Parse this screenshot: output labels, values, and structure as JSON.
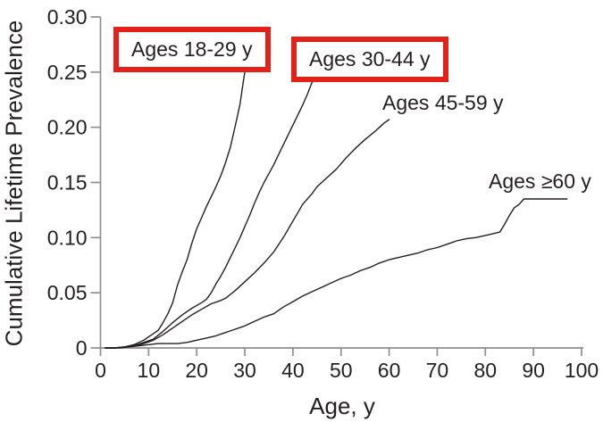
{
  "chart_data": {
    "type": "line",
    "title": "",
    "xlabel": "Age, y",
    "ylabel": "Cumulative Lifetime Prevalence",
    "xlim": [
      0,
      100
    ],
    "ylim": [
      0,
      0.3
    ],
    "x_ticks": [
      0,
      10,
      20,
      30,
      40,
      50,
      60,
      70,
      80,
      90,
      100
    ],
    "y_ticks": [
      0,
      0.05,
      0.1,
      0.15,
      0.2,
      0.25,
      0.3
    ],
    "grid": false,
    "legend_position": "inline-annotations",
    "line_color": "#231f20",
    "axis_color": "#8f8f8f",
    "highlight_box_color": "#e32119",
    "series": [
      {
        "name": "Ages 18-29 y",
        "boxed": true,
        "points": [
          [
            1,
            0
          ],
          [
            3,
            0
          ],
          [
            5,
            0.001
          ],
          [
            7,
            0.003
          ],
          [
            9,
            0.007
          ],
          [
            10,
            0.01
          ],
          [
            11,
            0.013
          ],
          [
            12,
            0.016
          ],
          [
            13,
            0.023
          ],
          [
            14,
            0.031
          ],
          [
            15,
            0.041
          ],
          [
            16,
            0.057
          ],
          [
            17,
            0.069
          ],
          [
            18,
            0.08
          ],
          [
            19,
            0.095
          ],
          [
            20,
            0.108
          ],
          [
            21,
            0.118
          ],
          [
            22,
            0.128
          ],
          [
            23,
            0.137
          ],
          [
            24,
            0.146
          ],
          [
            25,
            0.156
          ],
          [
            26,
            0.168
          ],
          [
            27,
            0.182
          ],
          [
            28,
            0.201
          ],
          [
            29,
            0.221
          ],
          [
            29.5,
            0.236
          ],
          [
            30,
            0.25
          ]
        ]
      },
      {
        "name": "Ages 30-44 y",
        "boxed": true,
        "points": [
          [
            1,
            0
          ],
          [
            3,
            0
          ],
          [
            5,
            0.001
          ],
          [
            7,
            0.002
          ],
          [
            9,
            0.005
          ],
          [
            11,
            0.008
          ],
          [
            13,
            0.015
          ],
          [
            15,
            0.023
          ],
          [
            17,
            0.03
          ],
          [
            19,
            0.036
          ],
          [
            21,
            0.041
          ],
          [
            22,
            0.044
          ],
          [
            23,
            0.05
          ],
          [
            24,
            0.058
          ],
          [
            25,
            0.065
          ],
          [
            26,
            0.073
          ],
          [
            27,
            0.082
          ],
          [
            28,
            0.091
          ],
          [
            29,
            0.1
          ],
          [
            30,
            0.11
          ],
          [
            31,
            0.12
          ],
          [
            32,
            0.131
          ],
          [
            33,
            0.141
          ],
          [
            34,
            0.15
          ],
          [
            35,
            0.158
          ],
          [
            36,
            0.166
          ],
          [
            37,
            0.175
          ],
          [
            38,
            0.184
          ],
          [
            39,
            0.193
          ],
          [
            40,
            0.202
          ],
          [
            41,
            0.211
          ],
          [
            42,
            0.22
          ],
          [
            43,
            0.23
          ],
          [
            44,
            0.241
          ]
        ]
      },
      {
        "name": "Ages 45-59 y",
        "boxed": false,
        "points": [
          [
            1,
            0
          ],
          [
            3,
            0
          ],
          [
            5,
            0.001
          ],
          [
            7,
            0.002
          ],
          [
            9,
            0.004
          ],
          [
            11,
            0.007
          ],
          [
            13,
            0.012
          ],
          [
            15,
            0.018
          ],
          [
            17,
            0.024
          ],
          [
            19,
            0.03
          ],
          [
            21,
            0.035
          ],
          [
            23,
            0.04
          ],
          [
            25,
            0.043
          ],
          [
            26,
            0.045
          ],
          [
            28,
            0.052
          ],
          [
            30,
            0.06
          ],
          [
            32,
            0.068
          ],
          [
            34,
            0.077
          ],
          [
            36,
            0.087
          ],
          [
            38,
            0.1
          ],
          [
            40,
            0.115
          ],
          [
            42,
            0.13
          ],
          [
            44,
            0.14
          ],
          [
            45,
            0.146
          ],
          [
            47,
            0.154
          ],
          [
            49,
            0.162
          ],
          [
            51,
            0.172
          ],
          [
            53,
            0.181
          ],
          [
            55,
            0.189
          ],
          [
            57,
            0.196
          ],
          [
            58,
            0.2
          ],
          [
            59,
            0.204
          ],
          [
            60,
            0.207
          ]
        ]
      },
      {
        "name": "Ages ≥60 y",
        "boxed": false,
        "points": [
          [
            1,
            0
          ],
          [
            4,
            0
          ],
          [
            6,
            0.001
          ],
          [
            8,
            0.002
          ],
          [
            10,
            0.003
          ],
          [
            12,
            0.004
          ],
          [
            14,
            0.004
          ],
          [
            16,
            0.004
          ],
          [
            18,
            0.005
          ],
          [
            20,
            0.007
          ],
          [
            22,
            0.009
          ],
          [
            24,
            0.011
          ],
          [
            26,
            0.014
          ],
          [
            28,
            0.017
          ],
          [
            30,
            0.02
          ],
          [
            32,
            0.024
          ],
          [
            34,
            0.028
          ],
          [
            36,
            0.031
          ],
          [
            38,
            0.037
          ],
          [
            40,
            0.042
          ],
          [
            42,
            0.047
          ],
          [
            44,
            0.051
          ],
          [
            46,
            0.055
          ],
          [
            48,
            0.059
          ],
          [
            50,
            0.063
          ],
          [
            52,
            0.066
          ],
          [
            54,
            0.07
          ],
          [
            56,
            0.073
          ],
          [
            58,
            0.077
          ],
          [
            60,
            0.08
          ],
          [
            62,
            0.082
          ],
          [
            64,
            0.084
          ],
          [
            66,
            0.086
          ],
          [
            68,
            0.089
          ],
          [
            70,
            0.091
          ],
          [
            72,
            0.094
          ],
          [
            74,
            0.097
          ],
          [
            76,
            0.099
          ],
          [
            78,
            0.1
          ],
          [
            80,
            0.102
          ],
          [
            82,
            0.104
          ],
          [
            83,
            0.105
          ],
          [
            84,
            0.112
          ],
          [
            85,
            0.12
          ],
          [
            86,
            0.127
          ],
          [
            87,
            0.13
          ],
          [
            88,
            0.135
          ],
          [
            92,
            0.135
          ],
          [
            97,
            0.135
          ]
        ]
      }
    ]
  }
}
